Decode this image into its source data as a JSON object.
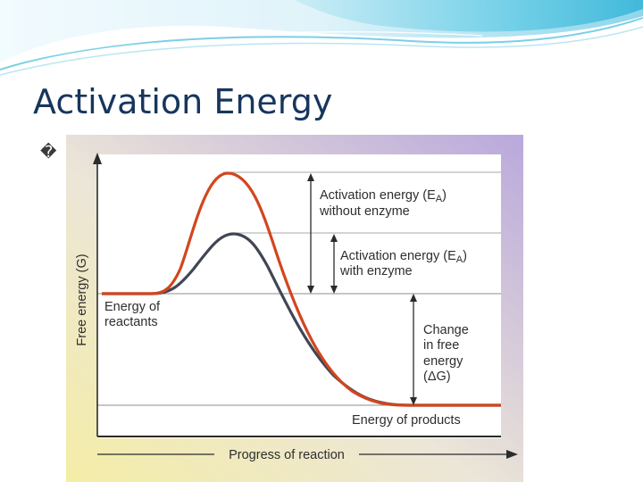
{
  "slide": {
    "title": "Activation Energy",
    "bullet_glyph": "�"
  },
  "diagram": {
    "y_axis_label": "Free energy (G)",
    "x_axis_label": "Progress of reaction",
    "labels": {
      "ea_without_line1": "Activation energy (E",
      "ea_without_line2": "without enzyme",
      "ea_with_line1": "Activation energy (E",
      "ea_with_line2": "with enzyme",
      "subscript": "A",
      "close_paren": ")",
      "reactants_line1": "Energy of",
      "reactants_line2": "reactants",
      "change_line1": "Change",
      "change_line2": "in free",
      "change_line3": "energy",
      "change_line4": "(ΔG)",
      "products": "Energy of products"
    },
    "colors": {
      "without_enzyme_curve": "#d2461e",
      "with_enzyme_curve": "#404654",
      "axis": "#2b2b2b",
      "banner_light": "#e6f6fb",
      "banner_cyan": "#4ec3df",
      "title": "#17365d"
    }
  }
}
